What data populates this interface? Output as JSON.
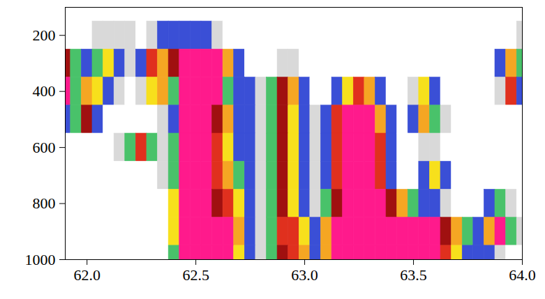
{
  "chart_data": {
    "type": "heatmap",
    "xlim": [
      61.9,
      64.0
    ],
    "xticks": [
      {
        "value": 62.0,
        "label": "62.0"
      },
      {
        "value": 62.5,
        "label": "62.5"
      },
      {
        "value": 63.0,
        "label": "63.0"
      },
      {
        "value": 63.5,
        "label": "63.5"
      },
      {
        "value": 64.0,
        "label": "64.0"
      }
    ],
    "ylim": [
      1000,
      100
    ],
    "yticks": [
      200,
      400,
      600,
      800,
      1000
    ],
    "zlim": [
      0,
      8
    ],
    "x": [
      61.9,
      61.95,
      62.0,
      62.05,
      62.1,
      62.15,
      62.2,
      62.25,
      62.3,
      62.35,
      62.4,
      62.45,
      62.5,
      62.55,
      62.6,
      62.65,
      62.7,
      62.75,
      62.8,
      62.85,
      62.9,
      62.95,
      63.0,
      63.05,
      63.1,
      63.15,
      63.2,
      63.25,
      63.3,
      63.35,
      63.4,
      63.45,
      63.5,
      63.55,
      63.6,
      63.65,
      63.7,
      63.75,
      63.8,
      63.85,
      63.9,
      63.95,
      64.0
    ],
    "y": [
      200,
      300,
      400,
      500,
      600,
      700,
      800,
      900,
      1000
    ],
    "z": [
      [
        0,
        0,
        0,
        1,
        1,
        1,
        1,
        0,
        1,
        2,
        2,
        2,
        2,
        2,
        1,
        0,
        0,
        0,
        0,
        0,
        0,
        0,
        0,
        0,
        0,
        0,
        0,
        0,
        0,
        0,
        0,
        0,
        0,
        0,
        0,
        0,
        0,
        0,
        0,
        0,
        0,
        0,
        1
      ],
      [
        7,
        3,
        2,
        3,
        4,
        2,
        1,
        2,
        6,
        5,
        7,
        8,
        8,
        8,
        8,
        5,
        2,
        0,
        0,
        0,
        1,
        1,
        0,
        0,
        0,
        0,
        0,
        0,
        0,
        0,
        0,
        0,
        0,
        0,
        0,
        0,
        0,
        0,
        0,
        0,
        2,
        5,
        3
      ],
      [
        8,
        3,
        5,
        4,
        2,
        1,
        0,
        1,
        4,
        5,
        3,
        8,
        8,
        8,
        8,
        3,
        2,
        2,
        1,
        3,
        7,
        5,
        2,
        0,
        0,
        2,
        4,
        6,
        5,
        2,
        0,
        0,
        1,
        4,
        2,
        0,
        0,
        0,
        0,
        0,
        1,
        6,
        2
      ],
      [
        2,
        3,
        7,
        2,
        0,
        0,
        0,
        0,
        0,
        1,
        2,
        8,
        8,
        8,
        7,
        5,
        2,
        2,
        1,
        3,
        7,
        4,
        2,
        1,
        2,
        6,
        8,
        8,
        8,
        5,
        2,
        0,
        2,
        5,
        3,
        1,
        0,
        0,
        0,
        0,
        0,
        0,
        0
      ],
      [
        0,
        0,
        0,
        0,
        0,
        1,
        3,
        6,
        3,
        1,
        3,
        8,
        8,
        8,
        6,
        4,
        2,
        2,
        1,
        3,
        7,
        4,
        2,
        1,
        2,
        6,
        8,
        8,
        8,
        6,
        2,
        0,
        0,
        1,
        1,
        0,
        0,
        0,
        0,
        0,
        0,
        0,
        0
      ],
      [
        0,
        0,
        0,
        0,
        0,
        0,
        0,
        0,
        0,
        1,
        3,
        8,
        8,
        8,
        6,
        5,
        3,
        2,
        1,
        3,
        7,
        4,
        2,
        1,
        2,
        6,
        8,
        8,
        8,
        6,
        2,
        0,
        0,
        2,
        4,
        2,
        0,
        0,
        0,
        0,
        0,
        0,
        0
      ],
      [
        0,
        0,
        0,
        0,
        0,
        0,
        0,
        0,
        0,
        0,
        4,
        8,
        8,
        8,
        7,
        6,
        4,
        2,
        1,
        3,
        7,
        4,
        2,
        1,
        3,
        7,
        8,
        8,
        8,
        8,
        7,
        5,
        3,
        2,
        2,
        1,
        0,
        0,
        0,
        2,
        3,
        1,
        0
      ],
      [
        0,
        0,
        0,
        0,
        0,
        0,
        0,
        0,
        0,
        0,
        4,
        8,
        8,
        8,
        8,
        8,
        5,
        2,
        1,
        3,
        6,
        6,
        4,
        2,
        5,
        8,
        8,
        8,
        8,
        8,
        8,
        8,
        8,
        8,
        8,
        7,
        5,
        3,
        2,
        5,
        8,
        3,
        1
      ],
      [
        0,
        0,
        0,
        0,
        0,
        0,
        0,
        0,
        0,
        0,
        3,
        8,
        8,
        8,
        8,
        8,
        4,
        2,
        1,
        3,
        7,
        6,
        5,
        2,
        5,
        8,
        8,
        8,
        8,
        8,
        8,
        8,
        8,
        8,
        8,
        6,
        4,
        2,
        2,
        2,
        1,
        0,
        0
      ]
    ]
  }
}
